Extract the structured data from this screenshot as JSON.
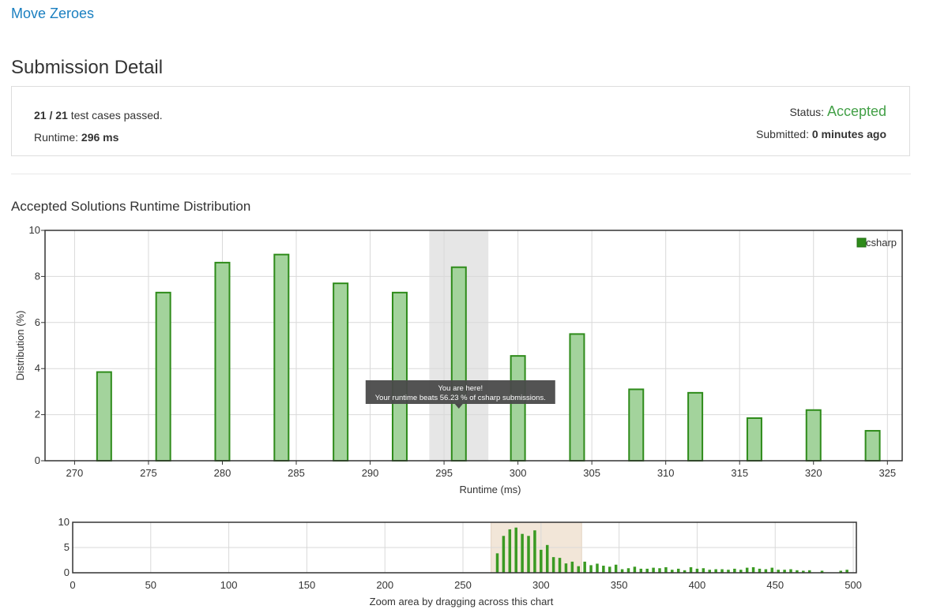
{
  "problem": {
    "title": "Move Zeroes"
  },
  "page": {
    "title": "Submission Detail"
  },
  "submission": {
    "passed": "21",
    "separator": "/",
    "total": "21",
    "passed_suffix": "test cases passed.",
    "runtime_label": "Runtime:",
    "runtime_value": "296 ms",
    "status_label": "Status:",
    "status_value": "Accepted",
    "submitted_label": "Submitted:",
    "submitted_value": "0 minutes ago"
  },
  "colors": {
    "bar_fill": "#a3d39c",
    "bar_stroke": "#2e8b1a",
    "nav_bar": "#3a9a22",
    "status": "#43a047",
    "highlight": "#e6e6e6",
    "nav_window": "#f2e6d8"
  },
  "section": {
    "title": "Accepted Solutions Runtime Distribution"
  },
  "chart_data": [
    {
      "type": "bar",
      "xlabel": "Runtime (ms)",
      "ylabel": "Distribution (%)",
      "xlim": [
        268,
        326
      ],
      "ylim": [
        0,
        10
      ],
      "xticks": [
        270,
        275,
        280,
        285,
        290,
        295,
        300,
        305,
        310,
        315,
        320,
        325
      ],
      "yticks": [
        0,
        2,
        4,
        6,
        8,
        10
      ],
      "legend": {
        "position": "top-right",
        "entries": [
          "csharp"
        ]
      },
      "series": [
        {
          "name": "csharp",
          "x": [
            272,
            276,
            280,
            284,
            288,
            292,
            296,
            300,
            304,
            308,
            312,
            316,
            320,
            324
          ],
          "values": [
            3.85,
            7.3,
            8.6,
            8.95,
            7.7,
            7.3,
            8.4,
            4.55,
            5.5,
            3.1,
            2.95,
            1.85,
            2.2,
            1.3
          ]
        }
      ],
      "highlight_range": [
        294,
        298
      ],
      "tooltip": {
        "line1": "You are here!",
        "line2": "Your runtime beats 56.23 % of csharp submissions."
      },
      "grid": true
    },
    {
      "type": "bar",
      "xlabel": "Zoom area by dragging across this chart",
      "xlim": [
        0,
        502
      ],
      "ylim": [
        0,
        10
      ],
      "xticks": [
        0,
        50,
        100,
        150,
        200,
        250,
        300,
        350,
        400,
        450,
        500
      ],
      "yticks": [
        0,
        5,
        10
      ],
      "selection_range": [
        268,
        326
      ],
      "series": [
        {
          "name": "csharp",
          "x": [
            272,
            276,
            280,
            284,
            288,
            292,
            296,
            300,
            304,
            308,
            312,
            316,
            320,
            324,
            328,
            332,
            336,
            340,
            344,
            348,
            352,
            356,
            360,
            364,
            368,
            372,
            376,
            380,
            384,
            388,
            392,
            396,
            400,
            404,
            408,
            412,
            416,
            420,
            424,
            428,
            432,
            436,
            440,
            444,
            448,
            452,
            456,
            460,
            464,
            468,
            472,
            480,
            492,
            496
          ],
          "values": [
            3.85,
            7.3,
            8.6,
            8.95,
            7.7,
            7.3,
            8.4,
            4.55,
            5.5,
            3.1,
            2.95,
            1.85,
            2.2,
            1.3,
            2.2,
            1.5,
            1.8,
            1.4,
            1.2,
            1.6,
            0.7,
            0.9,
            1.2,
            0.8,
            0.8,
            1.0,
            0.9,
            1.1,
            0.6,
            0.8,
            0.5,
            1.1,
            0.8,
            0.9,
            0.6,
            0.7,
            0.7,
            0.6,
            0.8,
            0.6,
            1.0,
            1.1,
            0.8,
            0.7,
            1.0,
            0.6,
            0.6,
            0.7,
            0.5,
            0.4,
            0.5,
            0.4,
            0.4,
            0.6
          ]
        }
      ]
    }
  ]
}
